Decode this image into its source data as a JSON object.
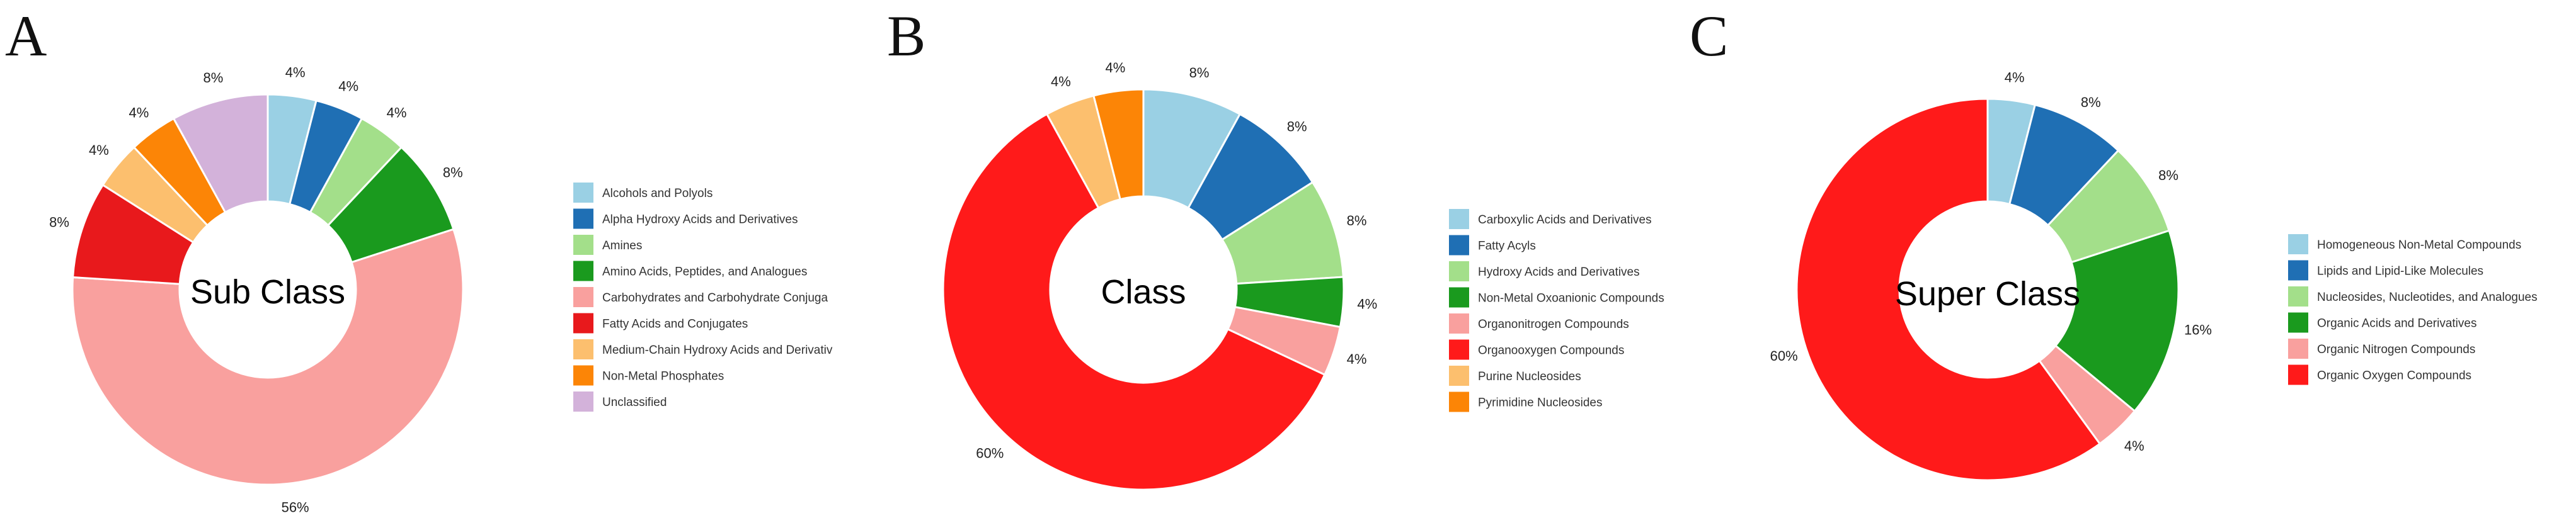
{
  "panels": [
    {
      "letter": "A",
      "center_label": "Sub Class",
      "legend": [
        {
          "label": "Alcohols and Polyols",
          "color": "#9ad0e4"
        },
        {
          "label": "Alpha Hydroxy Acids and Derivatives",
          "color": "#1f6fb4"
        },
        {
          "label": "Amines",
          "color": "#a3df8a"
        },
        {
          "label": "Amino Acids, Peptides, and Analogues",
          "color": "#1a9a1e"
        },
        {
          "label": "Carbohydrates and Carbohydrate Conjuga",
          "color": "#f9a09e"
        },
        {
          "label": "Fatty Acids and Conjugates",
          "color": "#e8191c"
        },
        {
          "label": "Medium-Chain Hydroxy Acids and Derivativ",
          "color": "#fcbf6e"
        },
        {
          "label": "Non-Metal Phosphates",
          "color": "#fc8506"
        },
        {
          "label": "Unclassified",
          "color": "#d3b2da"
        }
      ]
    },
    {
      "letter": "B",
      "center_label": "Class",
      "legend": [
        {
          "label": "Carboxylic Acids and Derivatives",
          "color": "#9ad0e4"
        },
        {
          "label": "Fatty Acyls",
          "color": "#1f6fb4"
        },
        {
          "label": "Hydroxy Acids and Derivatives",
          "color": "#a3df8a"
        },
        {
          "label": "Non-Metal Oxoanionic Compounds",
          "color": "#1a9a1e"
        },
        {
          "label": "Organonitrogen Compounds",
          "color": "#f9a09e"
        },
        {
          "label": "Organooxygen Compounds",
          "color": "#ff1a1a"
        },
        {
          "label": "Purine Nucleosides",
          "color": "#fcbf6e"
        },
        {
          "label": "Pyrimidine Nucleosides",
          "color": "#fc8506"
        }
      ]
    },
    {
      "letter": "C",
      "center_label": "Super Class",
      "legend": [
        {
          "label": "Homogeneous Non-Metal Compounds",
          "color": "#9ad0e4"
        },
        {
          "label": "Lipids and Lipid-Like Molecules",
          "color": "#1f6fb4"
        },
        {
          "label": "Nucleosides, Nucleotides, and Analogues",
          "color": "#a3df8a"
        },
        {
          "label": "Organic Acids and Derivatives",
          "color": "#1a9a1e"
        },
        {
          "label": "Organic Nitrogen Compounds",
          "color": "#f9a09e"
        },
        {
          "label": "Organic Oxygen Compounds",
          "color": "#ff1a1a"
        }
      ]
    }
  ],
  "chart_data": [
    {
      "type": "pie",
      "variant": "donut",
      "title": "Sub Class",
      "categories": [
        "Alcohols and Polyols",
        "Alpha Hydroxy Acids and Derivatives",
        "Amines",
        "Amino Acids, Peptides, and Analogues",
        "Carbohydrates and Carbohydrate Conjuga",
        "Fatty Acids and Conjugates",
        "Medium-Chain Hydroxy Acids and Derivativ",
        "Non-Metal Phosphates",
        "Unclassified"
      ],
      "values": [
        4,
        4,
        4,
        8,
        56,
        8,
        4,
        4,
        8
      ],
      "labels": [
        "4%",
        "4%",
        "4%",
        "8%",
        "56%",
        "8%",
        "4%",
        "4%",
        "8%"
      ],
      "legend_position": "right"
    },
    {
      "type": "pie",
      "variant": "donut",
      "title": "Class",
      "categories": [
        "Carboxylic Acids and Derivatives",
        "Fatty Acyls",
        "Hydroxy Acids and Derivatives",
        "Non-Metal Oxoanionic Compounds",
        "Organonitrogen Compounds",
        "Organooxygen Compounds",
        "Purine Nucleosides",
        "Pyrimidine Nucleosides"
      ],
      "values": [
        8,
        8,
        8,
        4,
        4,
        60,
        4,
        4
      ],
      "labels": [
        "8%",
        "8%",
        "8%",
        "4%",
        "4%",
        "60%",
        "4%",
        "4%"
      ],
      "legend_position": "right"
    },
    {
      "type": "pie",
      "variant": "donut",
      "title": "Super Class",
      "categories": [
        "Homogeneous Non-Metal Compounds",
        "Lipids and Lipid-Like Molecules",
        "Nucleosides, Nucleotides, and Analogues",
        "Organic Acids and Derivatives",
        "Organic Nitrogen Compounds",
        "Organic Oxygen Compounds"
      ],
      "values": [
        4,
        8,
        8,
        16,
        4,
        60
      ],
      "labels": [
        "4%",
        "8%",
        "8%",
        "16%",
        "4%",
        "60%"
      ],
      "legend_position": "right"
    }
  ]
}
